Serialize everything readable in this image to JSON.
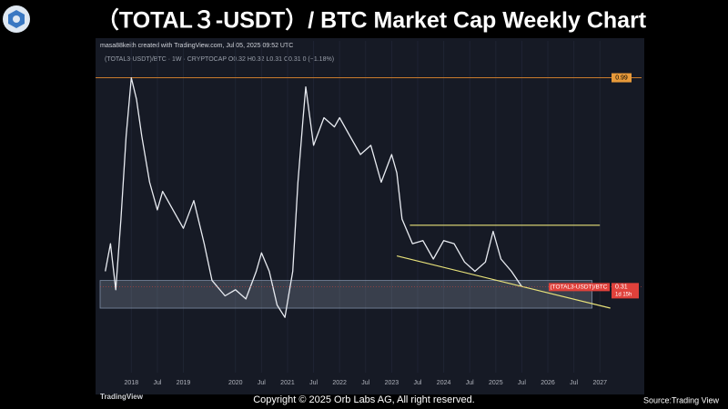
{
  "chart_data": {
    "type": "line",
    "title": "（TOTAL３-USDT）/ BTC  Market Cap Weekly Chart",
    "attribution": "masa88keith created with TradingView.com, Jul 05, 2025 09:52 UTC",
    "legend_text": "(TOTAL3-USDT)/BTC · 1W · CRYPTOCAP  O0.32  H0.32  L0.31  C0.31  0 (−1.18%)",
    "symbol_label": "(TOTAL3-USDT)/BTC",
    "countdown": "1d 15h",
    "last_value": 0.31,
    "price_line": 0.99,
    "color": "#e9ecf2",
    "x": [
      2017.5,
      2017.6,
      2017.7,
      2017.8,
      2017.9,
      2018.0,
      2018.1,
      2018.2,
      2018.35,
      2018.5,
      2018.6,
      2018.8,
      2019.0,
      2019.2,
      2019.4,
      2019.55,
      2019.8,
      2020.0,
      2020.2,
      2020.4,
      2020.5,
      2020.65,
      2020.8,
      2020.95,
      2021.1,
      2021.2,
      2021.3,
      2021.35,
      2021.5,
      2021.7,
      2021.9,
      2022.0,
      2022.2,
      2022.4,
      2022.6,
      2022.8,
      2023.0,
      2023.1,
      2023.2,
      2023.4,
      2023.6,
      2023.8,
      2024.0,
      2024.2,
      2024.4,
      2024.6,
      2024.8,
      2024.95,
      2025.1,
      2025.3,
      2025.5
    ],
    "values": [
      0.36,
      0.45,
      0.3,
      0.53,
      0.8,
      0.99,
      0.92,
      0.8,
      0.65,
      0.56,
      0.62,
      0.56,
      0.5,
      0.59,
      0.45,
      0.33,
      0.28,
      0.3,
      0.27,
      0.36,
      0.42,
      0.36,
      0.25,
      0.21,
      0.36,
      0.65,
      0.86,
      0.96,
      0.77,
      0.86,
      0.83,
      0.86,
      0.8,
      0.74,
      0.77,
      0.65,
      0.74,
      0.68,
      0.53,
      0.45,
      0.46,
      0.4,
      0.46,
      0.45,
      0.39,
      0.36,
      0.39,
      0.49,
      0.4,
      0.36,
      0.31
    ],
    "resistance": {
      "x": [
        2023.35,
        2027.0
      ],
      "values": [
        0.51,
        0.51
      ]
    },
    "support": {
      "x": [
        2023.1,
        2027.2
      ],
      "values": [
        0.41,
        0.24
      ]
    },
    "zone": {
      "x": [
        2017.4,
        2026.85
      ],
      "values": [
        0.33,
        0.24
      ]
    },
    "xlim": [
      2017.4,
      2027.8
    ],
    "ylim": [
      0.03,
      1.11
    ],
    "xticks": [
      2018,
      {
        "value": 2018.5,
        "label": "Jul"
      },
      2019,
      2020,
      {
        "value": 2020.5,
        "label": "Jul"
      },
      2021,
      {
        "value": 2021.5,
        "label": "Jul"
      },
      2022,
      {
        "value": 2022.5,
        "label": "Jul"
      },
      2023,
      {
        "value": 2023.5,
        "label": "Jul"
      },
      2024,
      {
        "value": 2024.5,
        "label": "Jul"
      },
      2025,
      {
        "value": 2025.5,
        "label": "Jul"
      },
      2026,
      {
        "value": 2026.5,
        "label": "Jul"
      },
      2027
    ],
    "grid": true,
    "logo": "TradingView",
    "copyright": "Copyright © 2025 Orb Labs AG, All right reserved.",
    "source": "Source:Trading View"
  }
}
